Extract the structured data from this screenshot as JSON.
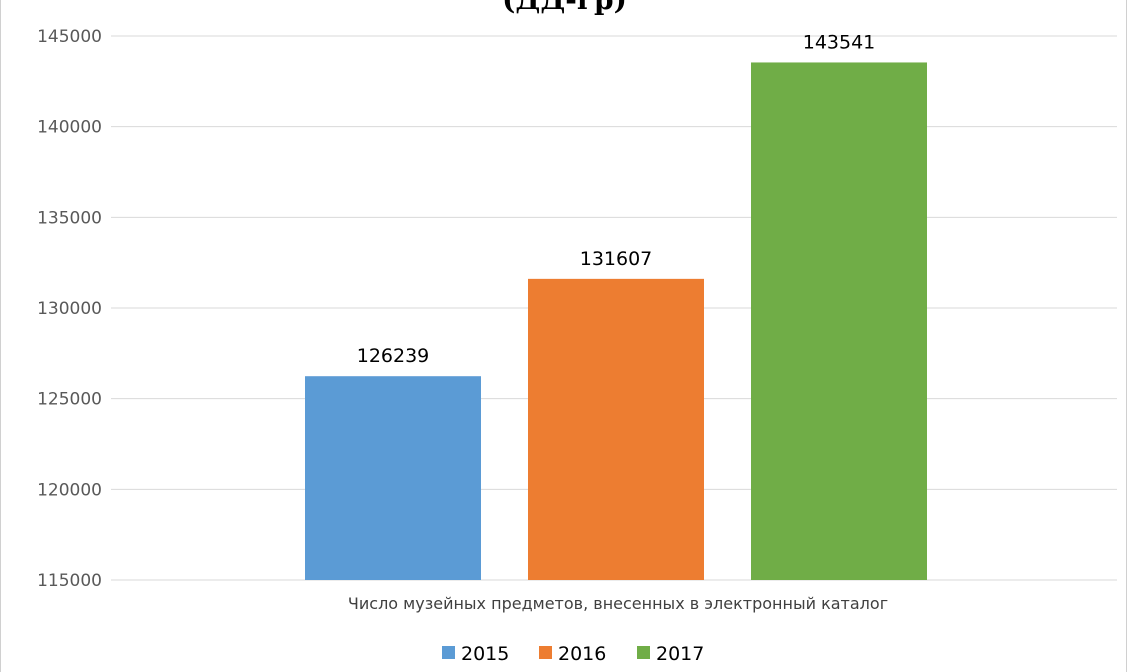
{
  "chart_data": {
    "type": "bar",
    "title": "(ДД-гр)",
    "categories": [
      "Число музейных предметов, внесенных в электронный каталог"
    ],
    "series": [
      {
        "name": "2015",
        "values": [
          126239
        ],
        "color": "#5B9BD5"
      },
      {
        "name": "2016",
        "values": [
          131607
        ],
        "color": "#ED7D31"
      },
      {
        "name": "2017",
        "values": [
          143541
        ],
        "color": "#70AD47"
      }
    ],
    "ylim": [
      115000,
      145000
    ],
    "yticks": [
      "115000",
      "120000",
      "125000",
      "130000",
      "135000",
      "140000",
      "145000"
    ],
    "xlabel": "",
    "ylabel": "",
    "grid": true,
    "legend_position": "bottom",
    "gridline_color": "#d9d9d9"
  }
}
